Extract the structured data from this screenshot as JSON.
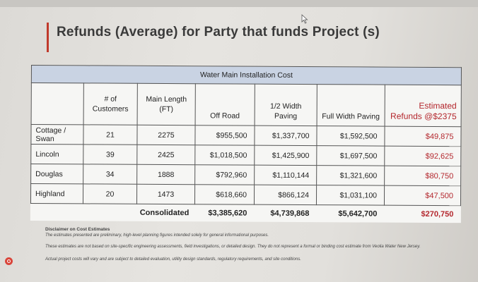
{
  "slide": {
    "title": "Refunds (Average) for Party that funds Project (s)"
  },
  "table": {
    "group_header": "Water Main Installation Cost",
    "columns": {
      "area": "",
      "customers": "# of Customers",
      "main_length": "Main Length (FT)",
      "off_road": "Off Road",
      "half_width": "1/2 Width Paving",
      "full_width": "Full Width Paving",
      "refunds": "Estimated Refunds @$2375"
    },
    "rows": [
      {
        "area": "Cottage / Swan",
        "customers": "21",
        "length": "2275",
        "off_road": "$955,500",
        "half": "$1,337,700",
        "full": "$1,592,500",
        "refund": "$49,875"
      },
      {
        "area": "Lincoln",
        "customers": "39",
        "length": "2425",
        "off_road": "$1,018,500",
        "half": "$1,425,900",
        "full": "$1,697,500",
        "refund": "$92,625"
      },
      {
        "area": "Douglas",
        "customers": "34",
        "length": "1888",
        "off_road": "$792,960",
        "half": "$1,110,144",
        "full": "$1,321,600",
        "refund": "$80,750"
      },
      {
        "area": "Highland",
        "customers": "20",
        "length": "1473",
        "off_road": "$618,660",
        "half": "$866,124",
        "full": "$1,031,100",
        "refund": "$47,500"
      }
    ],
    "totals": {
      "label": "Consolidated",
      "off_road": "$3,385,620",
      "half": "$4,739,868",
      "full": "$5,642,700",
      "refund": "$270,750"
    }
  },
  "disclaimer": {
    "title": "Disclaimer on Cost Estimates",
    "line1": "The estimates presented are preliminary, high-level planning figures intended solely for general informational purposes.",
    "line2": "These estimates are not based on site-specific engineering assessments, field investigations, or detailed design. They do not represent a formal or binding cost estimate from Veolia Water New Jersey.",
    "line3": "Actual project costs will vary and are subject to detailed evaluation, utility design standards, regulatory requirements, and site conditions."
  },
  "colors": {
    "accent": "#c0392b",
    "header_band": "#c9d3e3",
    "refund_text": "#b3262c"
  }
}
